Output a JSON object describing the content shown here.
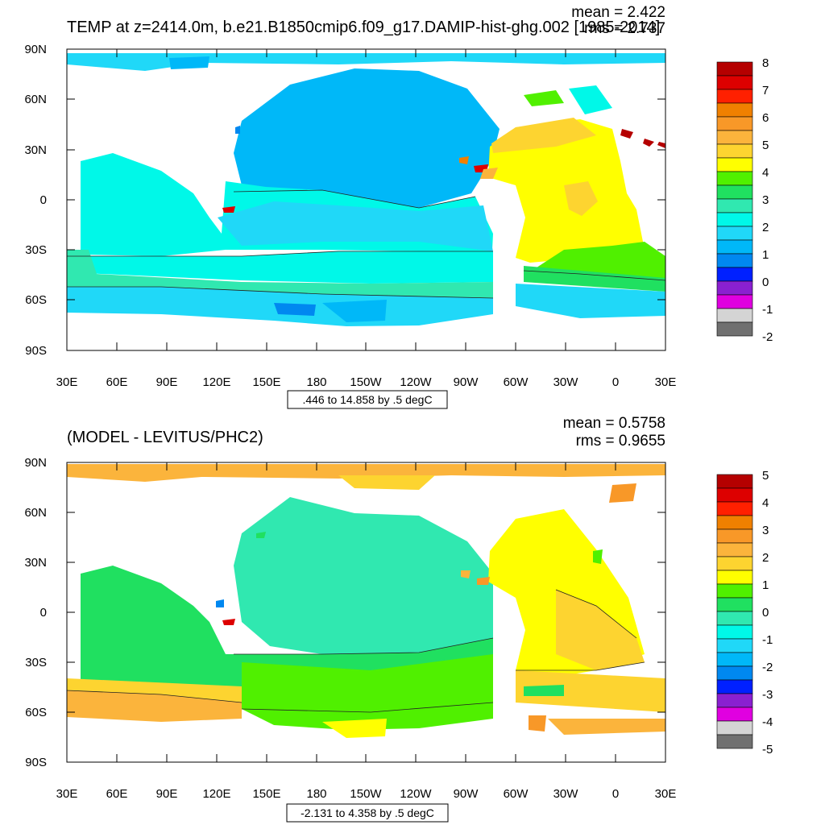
{
  "panels": [
    {
      "title": "TEMP at z=2414.0m, b.e21.B1850cmip6.f09_g17.DAMIP-hist-ghg.002 [1985-2014]",
      "mean_text": "mean = 2.422",
      "rms_text": "rms = 2.737",
      "range_text": ".446 to 14.858 by .5 degC",
      "colorbar": {
        "labels": [
          "8",
          "7",
          "6",
          "5",
          "4",
          "3",
          "2",
          "1",
          "0",
          "-1",
          "-2"
        ],
        "colors": [
          "#b50000",
          "#dd0000",
          "#ff2000",
          "#f08000",
          "#f89828",
          "#fbb43c",
          "#fdd430",
          "#ffff00",
          "#50f000",
          "#20e060",
          "#30e8b0",
          "#00f8e8",
          "#20d8f8",
          "#00b8f8",
          "#0088f0",
          "#0020ff",
          "#8a20d0",
          "#e000e0",
          "#d4d4d4",
          "#707070"
        ]
      }
    },
    {
      "title": "(MODEL - LEVITUS/PHC2)",
      "mean_text": "mean = 0.5758",
      "rms_text": "rms = 0.9655",
      "range_text": "-2.131 to 4.358 by .5 degC",
      "colorbar": {
        "labels": [
          "5",
          "4",
          "3",
          "2",
          "1",
          "0",
          "-1",
          "-2",
          "-3",
          "-4",
          "-5"
        ],
        "colors": [
          "#b50000",
          "#dd0000",
          "#ff2000",
          "#f08000",
          "#f89828",
          "#fbb43c",
          "#fdd430",
          "#ffff00",
          "#50f000",
          "#20e060",
          "#30e8b0",
          "#00f8e8",
          "#20d8f8",
          "#00b8f8",
          "#0088f0",
          "#0020ff",
          "#8a20d0",
          "#e000e0",
          "#d4d4d4",
          "#707070"
        ]
      }
    }
  ],
  "axes": {
    "x_ticks": [
      "30E",
      "60E",
      "90E",
      "120E",
      "150E",
      "180",
      "150W",
      "120W",
      "90W",
      "60W",
      "30W",
      "0",
      "30E"
    ],
    "y_ticks": [
      "90N",
      "60N",
      "30N",
      "0",
      "30S",
      "60S",
      "90S"
    ]
  }
}
